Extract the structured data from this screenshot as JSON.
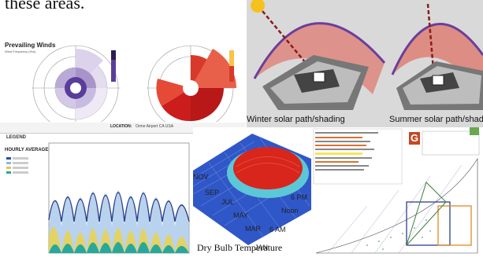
{
  "intro": {
    "text": "these areas."
  },
  "wind_rose": {
    "title": "Prevailing Winds",
    "subtitle_lines": [
      "Wind Frequency (Hrs)",
      "",
      ""
    ]
  },
  "solar": {
    "winter_caption": "Winter solar path/shading",
    "summer_caption": "Summer solar path/shading"
  },
  "strip": {
    "location_label": "LOCATION:",
    "location_value": "Orme Airport CA USA"
  },
  "hourly": {
    "legend_title": "LEGEND",
    "heading": "HOURLY AVERAGES"
  },
  "surface": {
    "caption": "Dry Bulb Temperature",
    "month_labels": [
      "JAN",
      "MAR",
      "MAY",
      "JUL",
      "SEP",
      "NOV"
    ],
    "hour_labels": [
      "6 AM",
      "Noon",
      "6 PM"
    ]
  },
  "psychrometric": {
    "badge": "G"
  },
  "colors": {
    "wind_purple": "#5a3d9a",
    "wind_red": "#cc1d1d",
    "solar_dome": "#e05a4a",
    "surface_blue": "#2f57c8",
    "surface_red": "#d8261c",
    "surface_cyan": "#5cc7d6"
  }
}
